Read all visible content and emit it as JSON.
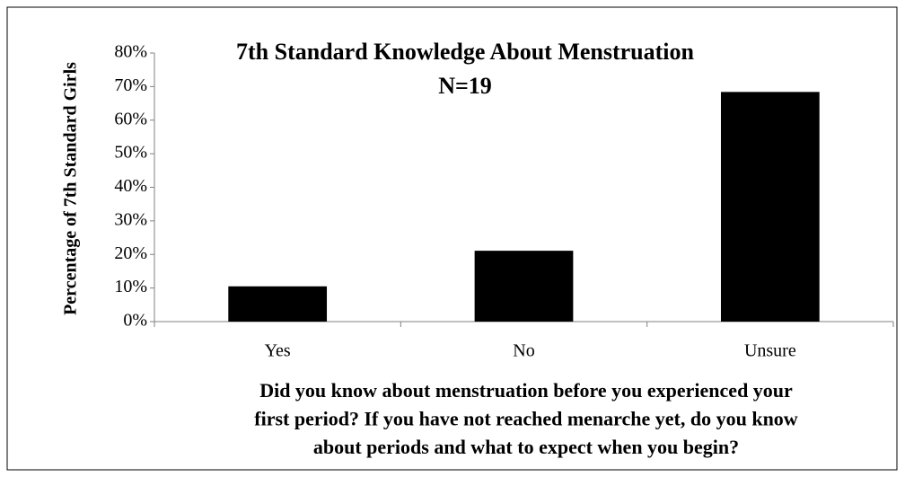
{
  "chart_data": {
    "type": "bar",
    "title": "7th Standard Knowledge About Menstruation",
    "subtitle": "N=19",
    "ylabel": "Percentage of 7th Standard Girls",
    "xlabel": [
      "Did you know about menstruation before you experienced your",
      "first period? If you have not reached menarche yet, do you know",
      "about periods and what to expect when you begin?"
    ],
    "categories": [
      "Yes",
      "No",
      "Unsure"
    ],
    "values": [
      10.5,
      21.1,
      68.4
    ],
    "color": "#000000",
    "ylim": [
      0,
      80
    ],
    "yticks": [
      {
        "value": 0,
        "label": "0%"
      },
      {
        "value": 10,
        "label": "10%"
      },
      {
        "value": 20,
        "label": "20%"
      },
      {
        "value": 30,
        "label": "30%"
      },
      {
        "value": 40,
        "label": "40%"
      },
      {
        "value": 50,
        "label": "50%"
      },
      {
        "value": 60,
        "label": "60%"
      },
      {
        "value": 70,
        "label": "70%"
      },
      {
        "value": 80,
        "label": "80%"
      }
    ],
    "grid": false
  }
}
